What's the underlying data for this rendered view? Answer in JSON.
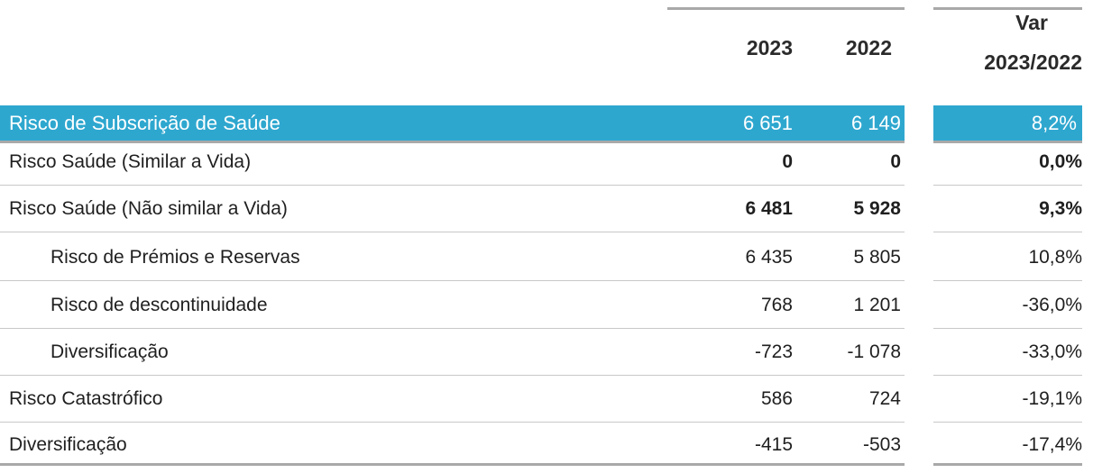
{
  "table": {
    "columns": {
      "y2023": "2023",
      "y2022": "2022",
      "var_line1": "Var",
      "var_line2": "2023/2022"
    },
    "highlight_color": "#2ea7cf",
    "highlight": {
      "label": "Risco de Subscrição de Saúde",
      "y2023": "6 651",
      "y2022": "6 149",
      "var": "8,2%"
    },
    "rows": [
      {
        "label": "Risco Saúde (Similar a Vida)",
        "y2023": "0",
        "y2022": "0",
        "var": "0,0%",
        "bold": true,
        "indent": false
      },
      {
        "label": "Risco Saúde (Não similar a Vida)",
        "y2023": "6 481",
        "y2022": "5 928",
        "var": "9,3%",
        "bold": true,
        "indent": false
      },
      {
        "label": "Risco de Prémios e Reservas",
        "y2023": "6 435",
        "y2022": "5 805",
        "var": "10,8%",
        "bold": false,
        "indent": true
      },
      {
        "label": "Risco de descontinuidade",
        "y2023": "768",
        "y2022": "1 201",
        "var": "-36,0%",
        "bold": false,
        "indent": true
      },
      {
        "label": "Diversificação",
        "y2023": "-723",
        "y2022": "-1 078",
        "var": "-33,0%",
        "bold": false,
        "indent": true
      },
      {
        "label": "Risco Catastrófico",
        "y2023": "586",
        "y2022": "724",
        "var": "-19,1%",
        "bold": false,
        "indent": false
      },
      {
        "label": "Diversificação",
        "y2023": "-415",
        "y2022": "-503",
        "var": "-17,4%",
        "bold": false,
        "indent": false
      }
    ]
  }
}
